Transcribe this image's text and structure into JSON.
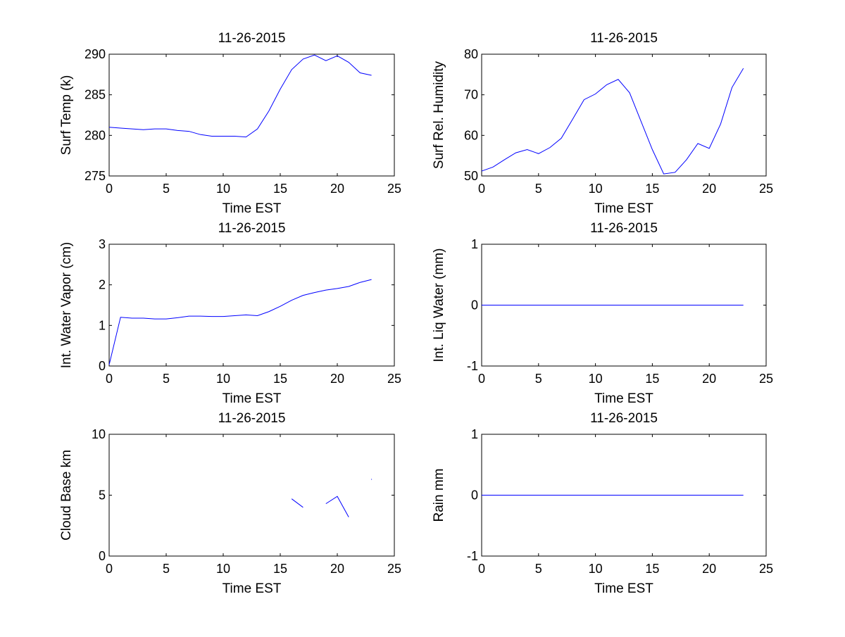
{
  "chart_data": [
    {
      "type": "line",
      "title": "11-26-2015",
      "xlabel": "Time EST",
      "ylabel": "Surf Temp (k)",
      "xlim": [
        0,
        25
      ],
      "ylim": [
        275,
        290
      ],
      "xticks": [
        0,
        5,
        10,
        15,
        20,
        25
      ],
      "yticks": [
        275,
        280,
        285,
        290
      ],
      "grid": false,
      "line_color": "#0000ff",
      "series": [
        {
          "x": [
            0,
            1,
            2,
            3,
            4,
            5,
            6,
            7,
            8,
            9,
            10,
            11,
            12,
            13,
            14,
            15,
            16,
            17,
            18,
            19,
            20,
            21,
            22,
            23
          ],
          "y": [
            281.0,
            280.9,
            280.8,
            280.7,
            280.8,
            280.8,
            280.6,
            280.5,
            280.1,
            279.9,
            279.9,
            279.9,
            279.8,
            280.8,
            283.0,
            285.7,
            288.1,
            289.4,
            289.9,
            289.2,
            289.8,
            289.0,
            287.7,
            287.4
          ]
        }
      ]
    },
    {
      "type": "line",
      "title": "11-26-2015",
      "xlabel": "Time EST",
      "ylabel": "Surf Rel. Humidity",
      "xlim": [
        0,
        25
      ],
      "ylim": [
        50,
        80
      ],
      "xticks": [
        0,
        5,
        10,
        15,
        20,
        25
      ],
      "yticks": [
        50,
        60,
        70,
        80
      ],
      "grid": false,
      "line_color": "#0000ff",
      "series": [
        {
          "x": [
            0,
            1,
            2,
            3,
            4,
            5,
            6,
            7,
            8,
            9,
            10,
            11,
            12,
            13,
            14,
            15,
            16,
            17,
            18,
            19,
            20,
            21,
            22,
            23
          ],
          "y": [
            51.2,
            52.2,
            54.0,
            55.7,
            56.5,
            55.5,
            57.0,
            59.3,
            64.0,
            68.8,
            70.2,
            72.5,
            73.8,
            70.5,
            63.5,
            56.5,
            50.5,
            50.9,
            54.0,
            58.0,
            56.8,
            62.8,
            71.8,
            76.5
          ]
        }
      ]
    },
    {
      "type": "line",
      "title": "11-26-2015",
      "xlabel": "Time EST",
      "ylabel": "Int. Water Vapor (cm)",
      "xlim": [
        0,
        25
      ],
      "ylim": [
        0,
        3
      ],
      "xticks": [
        0,
        5,
        10,
        15,
        20,
        25
      ],
      "yticks": [
        0,
        1,
        2,
        3
      ],
      "grid": false,
      "line_color": "#0000ff",
      "series": [
        {
          "x": [
            0,
            1,
            2,
            3,
            4,
            5,
            6,
            7,
            8,
            9,
            10,
            11,
            12,
            13,
            14,
            15,
            16,
            17,
            18,
            19,
            20,
            21,
            22,
            23
          ],
          "y": [
            0.03,
            1.2,
            1.18,
            1.18,
            1.16,
            1.16,
            1.19,
            1.23,
            1.23,
            1.22,
            1.22,
            1.24,
            1.26,
            1.24,
            1.34,
            1.47,
            1.62,
            1.74,
            1.81,
            1.87,
            1.91,
            1.96,
            2.06,
            2.13
          ]
        }
      ]
    },
    {
      "type": "line",
      "title": "11-26-2015",
      "xlabel": "Time EST",
      "ylabel": "Int. Liq Water (mm)",
      "xlim": [
        0,
        25
      ],
      "ylim": [
        -1,
        1
      ],
      "xticks": [
        0,
        5,
        10,
        15,
        20,
        25
      ],
      "yticks": [
        -1,
        0,
        1
      ],
      "grid": false,
      "line_color": "#0000ff",
      "series": [
        {
          "x": [
            0,
            23
          ],
          "y": [
            0,
            0
          ]
        }
      ]
    },
    {
      "type": "line",
      "title": "11-26-2015",
      "xlabel": "Time EST",
      "ylabel": "Cloud Base km",
      "xlim": [
        0,
        25
      ],
      "ylim": [
        0,
        10
      ],
      "xticks": [
        0,
        5,
        10,
        15,
        20,
        25
      ],
      "yticks": [
        0,
        5,
        10
      ],
      "grid": false,
      "line_color": "#0000ff",
      "series": [
        {
          "x": [
            16,
            17
          ],
          "y": [
            4.7,
            4.0
          ]
        },
        {
          "x": [
            19,
            20,
            21
          ],
          "y": [
            4.3,
            4.9,
            3.2
          ]
        },
        {
          "x": [
            23
          ],
          "y": [
            6.3
          ]
        }
      ]
    },
    {
      "type": "line",
      "title": "11-26-2015",
      "xlabel": "Time EST",
      "ylabel": "Rain mm",
      "xlim": [
        0,
        25
      ],
      "ylim": [
        -1,
        1
      ],
      "xticks": [
        0,
        5,
        10,
        15,
        20,
        25
      ],
      "yticks": [
        -1,
        0,
        1
      ],
      "grid": false,
      "line_color": "#0000ff",
      "series": [
        {
          "x": [
            0,
            23
          ],
          "y": [
            0,
            0
          ]
        }
      ]
    }
  ]
}
